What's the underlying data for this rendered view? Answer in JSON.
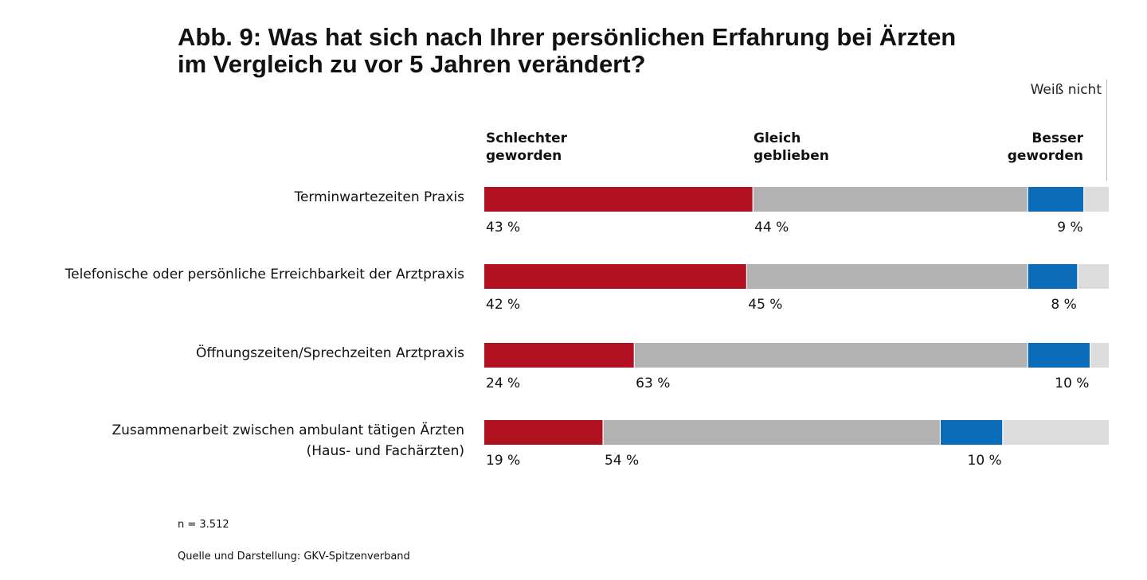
{
  "title_line1": "Abb. 9: Was hat sich nach Ihrer persönlichen Erfahrung bei Ärzten",
  "title_line2": "im Vergleich zu vor 5 Jahren verändert?",
  "n_note": "n = 3.512",
  "source": "Quelle und Darstellung: GKV-Spitzenverband",
  "colors": {
    "schlechter": "#b01020",
    "gleich": "#b2b2b2",
    "besser": "#0a6bb8",
    "weiss_nicht": "#dcdcdc"
  },
  "chart_data": {
    "type": "bar",
    "orientation": "horizontal",
    "stacked": true,
    "title": "Abb. 9: Was hat sich nach Ihrer persönlichen Erfahrung bei Ärzten im Vergleich zu vor 5 Jahren verändert?",
    "categories": [
      [
        "Terminwartezeiten Praxis"
      ],
      [
        "Telefonische oder persönliche Erreichbarkeit der Arztpraxis"
      ],
      [
        "Öffnungszeiten/Sprechzeiten Arztpraxis"
      ],
      [
        "Zusammenarbeit zwischen ambulant tätigen Ärzten",
        "(Haus- und Fachärzten)"
      ]
    ],
    "series": [
      {
        "name": "Schlechter geworden",
        "header": [
          "Schlechter",
          "geworden"
        ],
        "values": [
          43,
          42,
          24,
          19
        ]
      },
      {
        "name": "Gleich geblieben",
        "header": [
          "Gleich",
          "geblieben"
        ],
        "values": [
          44,
          45,
          63,
          54
        ]
      },
      {
        "name": "Besser geworden",
        "header": [
          "Besser",
          "geworden"
        ],
        "values": [
          9,
          8,
          10,
          10
        ]
      },
      {
        "name": "Weiß nicht",
        "header": [
          "Weiß nicht"
        ],
        "values": [
          4,
          5,
          3,
          17
        ]
      }
    ],
    "labeled_series": 3,
    "value_suffix": " %",
    "xlim": [
      0,
      100
    ]
  }
}
